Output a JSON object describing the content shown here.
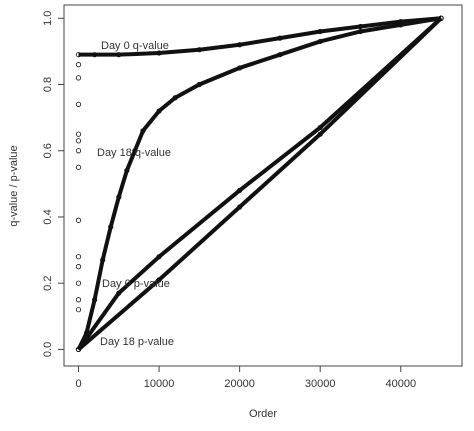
{
  "chart_data": {
    "type": "scatter",
    "xlabel": "Order",
    "ylabel": "q-value / p-value",
    "xlim": [
      -1800,
      47600
    ],
    "ylim": [
      -0.05,
      1.04
    ],
    "xticks": [
      0,
      10000,
      20000,
      30000,
      40000
    ],
    "yticks": [
      {
        "value": 0,
        "label": "0.0"
      },
      {
        "value": 0.2,
        "label": "0.2"
      },
      {
        "value": 0.4,
        "label": "0.4"
      },
      {
        "value": 0.6,
        "label": "0.6"
      },
      {
        "value": 0.8,
        "label": "0.8"
      },
      {
        "value": 1,
        "label": "1.0"
      }
    ],
    "annotations": [
      "Day 0 q-value",
      "Day 18 q-value",
      "Day 0 p-value",
      "Day 18 p-value"
    ],
    "color": "#111111",
    "series": [
      {
        "name": "Day 0 q-value",
        "x": [
          0,
          2000,
          5000,
          10000,
          15000,
          20000,
          25000,
          30000,
          35000,
          40000,
          45000
        ],
        "values": [
          0.89,
          0.89,
          0.89,
          0.895,
          0.905,
          0.92,
          0.94,
          0.96,
          0.975,
          0.99,
          1.0
        ]
      },
      {
        "name": "Day 18 q-value",
        "x": [
          0,
          1000,
          2000,
          3000,
          4000,
          5000,
          6000,
          7000,
          8000,
          10000,
          12000,
          15000,
          20000,
          25000,
          30000,
          35000,
          40000,
          45000
        ],
        "values": [
          0,
          0.05,
          0.15,
          0.27,
          0.37,
          0.46,
          0.54,
          0.6,
          0.66,
          0.72,
          0.76,
          0.8,
          0.85,
          0.89,
          0.93,
          0.96,
          0.98,
          1.0
        ]
      },
      {
        "name": "Day 0 p-value",
        "x": [
          0,
          5000,
          10000,
          20000,
          30000,
          45000
        ],
        "values": [
          0,
          0.17,
          0.28,
          0.48,
          0.67,
          1.0
        ]
      },
      {
        "name": "Day 18 p-value",
        "x": [
          0,
          10000,
          20000,
          30000,
          45000
        ],
        "values": [
          0,
          0.21,
          0.43,
          0.65,
          1.0
        ]
      },
      {
        "x": [
          0,
          0,
          0,
          0,
          0,
          0,
          0,
          0,
          0,
          0,
          0,
          0,
          0
        ],
        "values": [
          0.12,
          0.15,
          0.2,
          0.25,
          0.28,
          0.39,
          0.55,
          0.6,
          0.63,
          0.65,
          0.74,
          0.82,
          0.86
        ]
      }
    ]
  }
}
